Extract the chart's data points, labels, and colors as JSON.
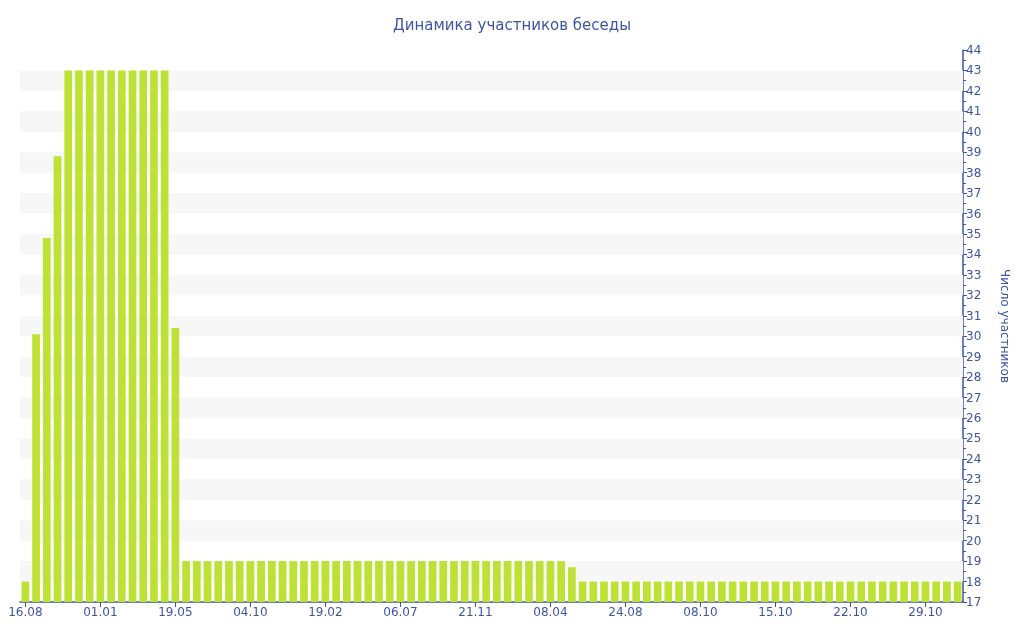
{
  "chart_data": {
    "type": "bar",
    "title": "Динамика участников беседы",
    "ylabel": "Число участников",
    "categories": [
      "16.08",
      null,
      null,
      null,
      null,
      null,
      null,
      "01.01",
      null,
      null,
      null,
      null,
      null,
      null,
      "19.05",
      null,
      null,
      null,
      null,
      null,
      null,
      "04.10",
      null,
      null,
      null,
      null,
      null,
      null,
      "19.02",
      null,
      null,
      null,
      null,
      null,
      null,
      "06.07",
      null,
      null,
      null,
      null,
      null,
      null,
      "21.11",
      null,
      null,
      null,
      null,
      null,
      null,
      "08.04",
      null,
      null,
      null,
      null,
      null,
      null,
      "24.08",
      null,
      null,
      null,
      null,
      null,
      null,
      "08.10",
      null,
      null,
      null,
      null,
      null,
      null,
      "15.10",
      null,
      null,
      null,
      null,
      null,
      null,
      "22.10",
      null,
      null,
      null,
      null,
      null,
      null,
      "29.10",
      null,
      null,
      null
    ],
    "values": [
      18,
      30.1,
      34.8,
      38.8,
      43,
      43,
      43,
      43,
      43,
      43,
      43,
      43,
      43,
      43,
      30.4,
      19,
      19,
      19,
      19,
      19,
      19,
      19,
      19,
      19,
      19,
      19,
      19,
      19,
      19,
      19,
      19,
      19,
      19,
      19,
      19,
      19,
      19,
      19,
      19,
      19,
      19,
      19,
      19,
      19,
      19,
      19,
      19,
      19,
      19,
      19,
      19,
      18.7,
      18,
      18,
      18,
      18,
      18,
      18,
      18,
      18,
      18,
      18,
      18,
      18,
      18,
      18,
      18,
      18,
      18,
      18,
      18,
      18,
      18,
      18,
      18,
      18,
      18,
      18,
      18,
      18,
      18,
      18,
      18,
      18,
      18,
      18,
      18,
      18
    ],
    "color": "#bde134",
    "ylim": [
      17,
      44
    ],
    "yticks": [
      17,
      18,
      19,
      20,
      21,
      22,
      23,
      24,
      25,
      26,
      27,
      28,
      29,
      30,
      31,
      32,
      33,
      34,
      35,
      36,
      37,
      38,
      39,
      40,
      41,
      42,
      43,
      44
    ],
    "bands": [
      {
        "axis": "y",
        "from": 18,
        "to": 19,
        "color": "#f7f7f7"
      },
      {
        "axis": "y",
        "from": 20,
        "to": 21,
        "color": "#f7f7f7"
      },
      {
        "axis": "y",
        "from": 22,
        "to": 23,
        "color": "#f7f7f7"
      },
      {
        "axis": "y",
        "from": 24,
        "to": 25,
        "color": "#f7f7f7"
      },
      {
        "axis": "y",
        "from": 26,
        "to": 27,
        "color": "#f7f7f7"
      },
      {
        "axis": "y",
        "from": 28,
        "to": 29,
        "color": "#f7f7f7"
      },
      {
        "axis": "y",
        "from": 30,
        "to": 31,
        "color": "#f7f7f7"
      },
      {
        "axis": "y",
        "from": 32,
        "to": 33,
        "color": "#f7f7f7"
      },
      {
        "axis": "y",
        "from": 34,
        "to": 35,
        "color": "#f7f7f7"
      },
      {
        "axis": "y",
        "from": 36,
        "to": 37,
        "color": "#f7f7f7"
      },
      {
        "axis": "y",
        "from": 38,
        "to": 39,
        "color": "#f7f7f7"
      },
      {
        "axis": "y",
        "from": 40,
        "to": 41,
        "color": "#f7f7f7"
      },
      {
        "axis": "y",
        "from": 42,
        "to": 43,
        "color": "#f7f7f7"
      }
    ]
  }
}
